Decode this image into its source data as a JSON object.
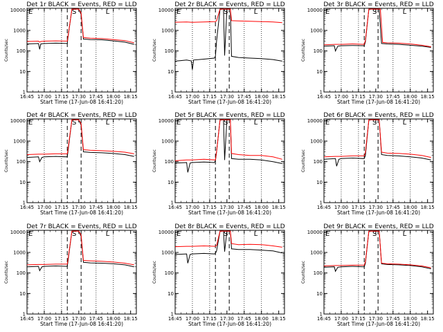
{
  "figure": {
    "x_tick_labels": [
      "16:45",
      "17:00",
      "17:15",
      "17:30",
      "17:45",
      "18:00",
      "18:15"
    ],
    "x_tick_values_min": [
      1005,
      1020,
      1035,
      1050,
      1065,
      1080,
      1095
    ],
    "x_range_min": [
      1005,
      1100
    ],
    "y_tick_labels": [
      "1",
      "10",
      "100",
      "1000",
      "10000"
    ],
    "y_range": [
      1,
      12000
    ],
    "y_scale": "log",
    "ylabel": "Counts/sec",
    "xlabel": "Start Time (17-Jun-08 16:41:20)",
    "marker_S": "S",
    "marker_E": "E",
    "marker_L": "L",
    "colors": {
      "events": "#000000",
      "lld": "#ff0000"
    }
  },
  "chart_data": [
    {
      "type": "line",
      "title": "Det 1r BLACK = Events, RED = LLD",
      "xlabel": "Start Time (17-Jun-08 16:41:20)",
      "ylabel": "Counts/sec",
      "vlines_dotted": [
        1020,
        1035,
        1065,
        1080
      ],
      "vlines_dashed": [
        1040,
        1052
      ],
      "markers": {
        "S": 1046,
        "E": 1005,
        "L": 1075
      },
      "series": [
        {
          "name": "Events",
          "color": "#000000",
          "x": [
            1005,
            1015,
            1016,
            1017,
            1020,
            1021,
            1030,
            1040,
            1040.5,
            1044,
            1045,
            1047,
            1050,
            1052,
            1054,
            1060,
            1070,
            1080,
            1090,
            1098
          ],
          "y": [
            220,
            230,
            120,
            220,
            230,
            230,
            240,
            230,
            400,
            11000,
            11000,
            11000,
            11000,
            6000,
            380,
            360,
            350,
            310,
            270,
            210
          ]
        },
        {
          "name": "LLD",
          "color": "#ff0000",
          "x": [
            1005,
            1015,
            1016,
            1017,
            1020,
            1030,
            1040,
            1040.5,
            1044,
            1045,
            1050,
            1052,
            1054,
            1060,
            1070,
            1080,
            1090,
            1098
          ],
          "y": [
            290,
            300,
            270,
            290,
            300,
            310,
            300,
            450,
            11000,
            11000,
            11000,
            7000,
            450,
            420,
            400,
            360,
            320,
            250
          ]
        }
      ]
    },
    {
      "type": "line",
      "title": "Det 2r BLACK = Events, RED = LLD",
      "xlabel": "Start Time (17-Jun-08 16:41:20)",
      "ylabel": "Counts/sec",
      "vlines_dotted": [
        1020,
        1035,
        1065,
        1080
      ],
      "vlines_dashed": [
        1040,
        1052
      ],
      "markers": {
        "S": 1049,
        "E": 1005,
        "L": 1075
      },
      "series": [
        {
          "name": "Events",
          "color": "#000000",
          "x": [
            1005,
            1010,
            1015,
            1019,
            1020,
            1021,
            1030,
            1039,
            1040,
            1041,
            1044,
            1047,
            1048,
            1050,
            1053,
            1054,
            1060,
            1070,
            1080,
            1090,
            1098
          ],
          "y": [
            32,
            34,
            36,
            33,
            12,
            36,
            40,
            45,
            55,
            300,
            11000,
            11000,
            60,
            11000,
            11000,
            55,
            48,
            45,
            42,
            38,
            32
          ]
        },
        {
          "name": "LLD",
          "color": "#ff0000",
          "x": [
            1005,
            1015,
            1020,
            1030,
            1040,
            1041,
            1044,
            1050,
            1053,
            1054,
            1060,
            1070,
            1080,
            1090,
            1098
          ],
          "y": [
            2500,
            2600,
            2500,
            2600,
            2700,
            3000,
            11000,
            11000,
            11000,
            3000,
            2900,
            2800,
            2700,
            2600,
            2400
          ]
        }
      ]
    },
    {
      "type": "line",
      "title": "Det 3r BLACK = Events, RED = LLD",
      "xlabel": "Start Time (17-Jun-08 16:41:20)",
      "ylabel": "Counts/sec",
      "vlines_dotted": [
        1020,
        1035,
        1065,
        1080
      ],
      "vlines_dashed": [
        1040,
        1052
      ],
      "markers": {
        "S": 1049,
        "E": 1005,
        "L": 1075
      },
      "series": [
        {
          "name": "Events",
          "color": "#000000",
          "x": [
            1005,
            1014,
            1015,
            1017,
            1020,
            1030,
            1040,
            1041,
            1044,
            1050,
            1053,
            1055,
            1060,
            1070,
            1080,
            1090,
            1098
          ],
          "y": [
            170,
            180,
            100,
            170,
            180,
            185,
            180,
            280,
            11000,
            11000,
            11000,
            230,
            220,
            210,
            190,
            170,
            150
          ]
        },
        {
          "name": "LLD",
          "color": "#ff0000",
          "x": [
            1005,
            1015,
            1020,
            1030,
            1040,
            1041,
            1044,
            1050,
            1054,
            1056,
            1060,
            1070,
            1080,
            1090,
            1098
          ],
          "y": [
            200,
            210,
            210,
            220,
            210,
            330,
            11000,
            11000,
            11000,
            260,
            250,
            240,
            220,
            190,
            160
          ]
        }
      ]
    },
    {
      "type": "line",
      "title": "Det 4r BLACK = Events, RED = LLD",
      "xlabel": "Start Time (17-Jun-08 16:41:20)",
      "ylabel": "Counts/sec",
      "vlines_dotted": [
        1020,
        1035,
        1065,
        1080
      ],
      "vlines_dashed": [
        1040,
        1052
      ],
      "markers": {
        "S": 1046,
        "E": 1005,
        "L": 1075
      },
      "series": [
        {
          "name": "Events",
          "color": "#000000",
          "x": [
            1005,
            1015,
            1016,
            1018,
            1020,
            1030,
            1040,
            1040.5,
            1044,
            1050,
            1052,
            1054,
            1060,
            1070,
            1080,
            1090,
            1098
          ],
          "y": [
            160,
            170,
            100,
            160,
            170,
            180,
            170,
            280,
            11000,
            11000,
            6000,
            300,
            280,
            270,
            250,
            220,
            180
          ]
        },
        {
          "name": "LLD",
          "color": "#ff0000",
          "x": [
            1005,
            1015,
            1020,
            1030,
            1040,
            1040.5,
            1044,
            1050,
            1052,
            1054,
            1060,
            1070,
            1080,
            1090,
            1098
          ],
          "y": [
            220,
            230,
            230,
            240,
            240,
            350,
            11000,
            11000,
            7000,
            380,
            360,
            340,
            320,
            290,
            240
          ]
        }
      ]
    },
    {
      "type": "line",
      "title": "Det 5r BLACK = Events, RED = LLD",
      "xlabel": "Start Time (17-Jun-08 16:41:20)",
      "ylabel": "Counts/sec",
      "vlines_dotted": [
        1020,
        1035,
        1065,
        1080
      ],
      "vlines_dashed": [
        1040,
        1052
      ],
      "markers": {
        "S": 1049,
        "E": 1005,
        "L": 1075
      },
      "series": [
        {
          "name": "Events",
          "color": "#000000",
          "x": [
            1005,
            1015,
            1016,
            1018,
            1020,
            1030,
            1039,
            1040,
            1041,
            1044,
            1047,
            1048,
            1050,
            1053,
            1054,
            1060,
            1070,
            1080,
            1090,
            1098
          ],
          "y": [
            85,
            90,
            30,
            85,
            90,
            95,
            90,
            110,
            300,
            11000,
            11000,
            120,
            11000,
            11000,
            140,
            130,
            130,
            120,
            100,
            80
          ]
        },
        {
          "name": "LLD",
          "color": "#ff0000",
          "x": [
            1005,
            1015,
            1020,
            1030,
            1040,
            1041,
            1044,
            1050,
            1053,
            1054,
            1060,
            1070,
            1080,
            1090,
            1098
          ],
          "y": [
            110,
            120,
            120,
            130,
            120,
            300,
            11000,
            11000,
            11000,
            250,
            220,
            200,
            200,
            170,
            130
          ]
        }
      ]
    },
    {
      "type": "line",
      "title": "Det 6r BLACK = Events, RED = LLD",
      "xlabel": "Start Time (17-Jun-08 16:41:20)",
      "ylabel": "Counts/sec",
      "vlines_dotted": [
        1020,
        1035,
        1065,
        1080
      ],
      "vlines_dashed": [
        1040,
        1052
      ],
      "markers": {
        "S": 1049,
        "E": 1005,
        "L": 1075
      },
      "series": [
        {
          "name": "Events",
          "color": "#000000",
          "x": [
            1005,
            1015,
            1016,
            1018,
            1020,
            1030,
            1040,
            1041,
            1044,
            1050,
            1053,
            1055,
            1060,
            1070,
            1080,
            1090,
            1098
          ],
          "y": [
            130,
            140,
            60,
            130,
            140,
            150,
            140,
            200,
            11000,
            11000,
            11000,
            220,
            200,
            190,
            170,
            150,
            120
          ]
        },
        {
          "name": "LLD",
          "color": "#ff0000",
          "x": [
            1005,
            1015,
            1020,
            1030,
            1040,
            1041,
            1044,
            1050,
            1053,
            1055,
            1060,
            1070,
            1080,
            1090,
            1098
          ],
          "y": [
            170,
            180,
            180,
            190,
            190,
            280,
            11000,
            11000,
            11000,
            290,
            260,
            250,
            230,
            200,
            160
          ]
        }
      ]
    },
    {
      "type": "line",
      "title": "Det 7r BLACK = Events, RED = LLD",
      "xlabel": "Start Time (17-Jun-08 16:41:20)",
      "ylabel": "Counts/sec",
      "vlines_dotted": [
        1020,
        1035,
        1065,
        1080
      ],
      "vlines_dashed": [
        1040,
        1052
      ],
      "markers": {
        "S": 1046,
        "E": 1005,
        "L": 1075
      },
      "series": [
        {
          "name": "Events",
          "color": "#000000",
          "x": [
            1005,
            1015,
            1016,
            1018,
            1020,
            1030,
            1040,
            1040.5,
            1044,
            1050,
            1052,
            1054,
            1060,
            1070,
            1080,
            1090,
            1098
          ],
          "y": [
            200,
            210,
            130,
            200,
            210,
            220,
            210,
            330,
            11000,
            11000,
            6000,
            330,
            310,
            300,
            280,
            250,
            200
          ]
        },
        {
          "name": "LLD",
          "color": "#ff0000",
          "x": [
            1005,
            1015,
            1020,
            1030,
            1040,
            1040.5,
            1044,
            1050,
            1052,
            1054,
            1060,
            1070,
            1080,
            1090,
            1098
          ],
          "y": [
            250,
            260,
            260,
            270,
            270,
            400,
            11000,
            11000,
            7000,
            410,
            390,
            370,
            340,
            300,
            250
          ]
        }
      ]
    },
    {
      "type": "line",
      "title": "Det 8r BLACK = Events, RED = LLD",
      "xlabel": "Start Time (17-Jun-08 16:41:20)",
      "ylabel": "Counts/sec",
      "vlines_dotted": [
        1020,
        1035,
        1065,
        1080
      ],
      "vlines_dashed": [
        1040,
        1052
      ],
      "markers": {
        "S": 1049,
        "E": 1005,
        "L": 1075
      },
      "series": [
        {
          "name": "Events",
          "color": "#000000",
          "x": [
            1005,
            1015,
            1016,
            1018,
            1020,
            1030,
            1039,
            1040,
            1041,
            1044,
            1047,
            1048,
            1050,
            1053,
            1054,
            1060,
            1070,
            1080,
            1090,
            1098
          ],
          "y": [
            800,
            850,
            300,
            800,
            850,
            900,
            850,
            900,
            1200,
            11000,
            11000,
            1100,
            11000,
            11000,
            1500,
            1400,
            1400,
            1300,
            1200,
            950
          ]
        },
        {
          "name": "LLD",
          "color": "#ff0000",
          "x": [
            1005,
            1015,
            1020,
            1030,
            1040,
            1041,
            1044,
            1050,
            1053,
            1054,
            1060,
            1070,
            1080,
            1090,
            1098
          ],
          "y": [
            1900,
            2000,
            2000,
            2100,
            2000,
            2200,
            11000,
            11000,
            11000,
            2700,
            2400,
            2500,
            2400,
            2100,
            1800
          ]
        }
      ]
    },
    {
      "type": "line",
      "title": "Det 9r BLACK = Events, RED = LLD",
      "xlabel": "Start Time (17-Jun-08 16:41:20)",
      "ylabel": "Counts/sec",
      "vlines_dotted": [
        1020,
        1035,
        1065,
        1080
      ],
      "vlines_dashed": [
        1040,
        1052
      ],
      "markers": {
        "S": 1049,
        "E": 1005,
        "L": 1075
      },
      "series": [
        {
          "name": "Events",
          "color": "#000000",
          "x": [
            1005,
            1014,
            1015,
            1017,
            1020,
            1030,
            1040,
            1041,
            1044,
            1050,
            1053,
            1055,
            1060,
            1070,
            1080,
            1090,
            1098
          ],
          "y": [
            190,
            200,
            120,
            190,
            200,
            210,
            200,
            300,
            11000,
            11000,
            11000,
            280,
            260,
            250,
            230,
            200,
            160
          ]
        },
        {
          "name": "LLD",
          "color": "#ff0000",
          "x": [
            1005,
            1015,
            1020,
            1030,
            1040,
            1041,
            1044,
            1050,
            1053,
            1055,
            1060,
            1070,
            1080,
            1090,
            1098
          ],
          "y": [
            220,
            230,
            230,
            240,
            240,
            350,
            11000,
            11000,
            11000,
            300,
            280,
            270,
            250,
            220,
            180
          ]
        }
      ]
    }
  ]
}
